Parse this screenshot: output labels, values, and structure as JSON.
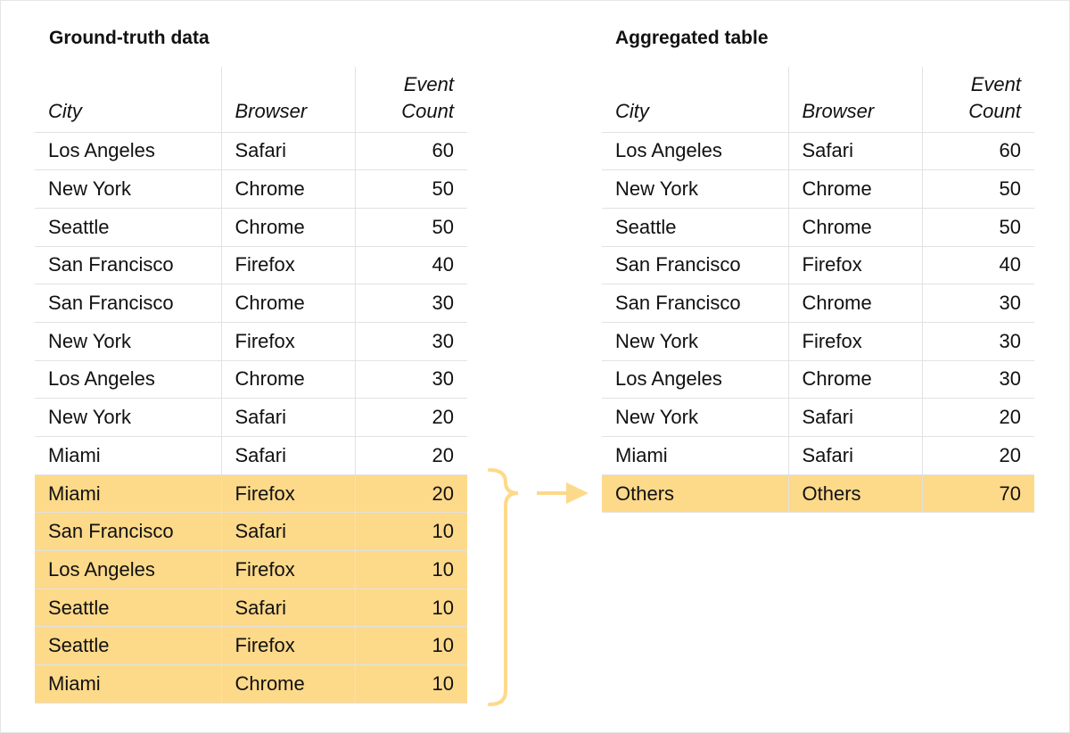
{
  "left": {
    "title": "Ground-truth data",
    "headers": [
      "City",
      "Browser",
      "Event Count"
    ],
    "rows": [
      [
        "Los Angeles",
        "Safari",
        "60"
      ],
      [
        "New York",
        "Chrome",
        "50"
      ],
      [
        "Seattle",
        "Chrome",
        "50"
      ],
      [
        "San Francisco",
        "Firefox",
        "40"
      ],
      [
        "San Francisco",
        "Chrome",
        "30"
      ],
      [
        "New York",
        "Firefox",
        "30"
      ],
      [
        "Los Angeles",
        "Chrome",
        "30"
      ],
      [
        "New York",
        "Safari",
        "20"
      ],
      [
        "Miami",
        "Safari",
        "20"
      ],
      [
        "Miami",
        "Firefox",
        "20"
      ],
      [
        "San Francisco",
        "Safari",
        "10"
      ],
      [
        "Los Angeles",
        "Firefox",
        "10"
      ],
      [
        "Seattle",
        "Safari",
        "10"
      ],
      [
        "Seattle",
        "Firefox",
        "10"
      ],
      [
        "Miami",
        "Chrome",
        "10"
      ]
    ],
    "highlighted_from": 9
  },
  "right": {
    "title": "Aggregated table",
    "headers": [
      "City",
      "Browser",
      "Event Count"
    ],
    "rows": [
      [
        "Los Angeles",
        "Safari",
        "60"
      ],
      [
        "New York",
        "Chrome",
        "50"
      ],
      [
        "Seattle",
        "Chrome",
        "50"
      ],
      [
        "San Francisco",
        "Firefox",
        "40"
      ],
      [
        "San Francisco",
        "Chrome",
        "30"
      ],
      [
        "New York",
        "Firefox",
        "30"
      ],
      [
        "Los Angeles",
        "Chrome",
        "30"
      ],
      [
        "New York",
        "Safari",
        "20"
      ],
      [
        "Miami",
        "Safari",
        "20"
      ],
      [
        "Others",
        "Others",
        "70"
      ]
    ],
    "highlighted_from": 9
  },
  "colors": {
    "highlight": "#fdd98a",
    "grid": "#e2e2e2"
  },
  "connector_icons": [
    "brace-icon",
    "arrow-right-icon"
  ]
}
